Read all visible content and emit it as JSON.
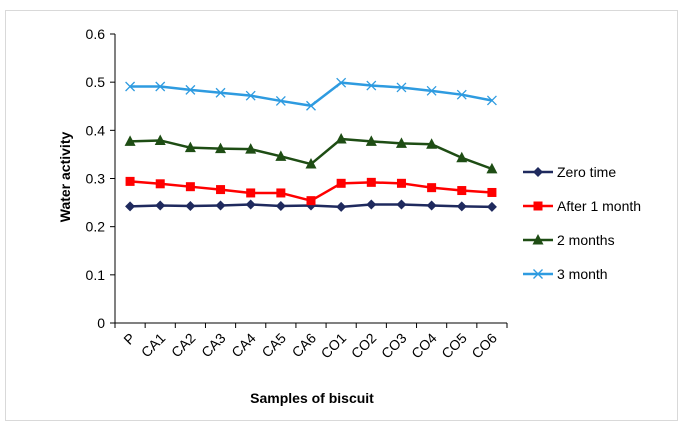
{
  "chart_data": {
    "type": "line",
    "categories": [
      "P",
      "CA1",
      "CA2",
      "CA3",
      "CA4",
      "CA5",
      "CA6",
      "CO1",
      "CO2",
      "CO3",
      "CO4",
      "CO5",
      "CO6"
    ],
    "series": [
      {
        "name": "Zero time",
        "color": "#1f2a5e",
        "marker": "diamond",
        "values": [
          0.242,
          0.244,
          0.243,
          0.244,
          0.246,
          0.243,
          0.244,
          0.241,
          0.246,
          0.246,
          0.244,
          0.242,
          0.241
        ]
      },
      {
        "name": "After 1 month",
        "color": "#ff0000",
        "marker": "square",
        "values": [
          0.294,
          0.289,
          0.283,
          0.277,
          0.27,
          0.27,
          0.254,
          0.29,
          0.292,
          0.29,
          0.281,
          0.275,
          0.271
        ]
      },
      {
        "name": "2 months",
        "color": "#1e4d14",
        "marker": "triangle",
        "values": [
          0.377,
          0.379,
          0.364,
          0.362,
          0.361,
          0.346,
          0.33,
          0.382,
          0.377,
          0.373,
          0.371,
          0.343,
          0.32
        ]
      },
      {
        "name": "3 month",
        "color": "#2e9be0",
        "marker": "x",
        "values": [
          0.491,
          0.491,
          0.484,
          0.478,
          0.472,
          0.461,
          0.451,
          0.499,
          0.493,
          0.489,
          0.482,
          0.474,
          0.462
        ]
      }
    ],
    "yticks": [
      "0",
      "0.1",
      "0.2",
      "0.3",
      "0.4",
      "0.5",
      "0.6"
    ],
    "ylim": [
      0,
      0.6
    ],
    "xlabel": "Samples of biscuit",
    "ylabel": "Water activity",
    "grid": false,
    "legend_position": "right"
  }
}
